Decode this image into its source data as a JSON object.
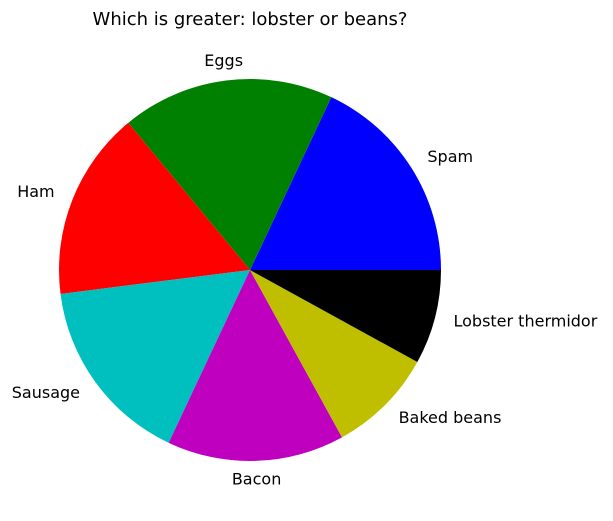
{
  "chart_data": {
    "type": "pie",
    "title": "Which is greater: lobster or beans?",
    "labels": [
      "Spam",
      "Eggs",
      "Ham",
      "Sausage",
      "Bacon",
      "Baked beans",
      "Lobster thermidor"
    ],
    "values": [
      18,
      18,
      16,
      16,
      15,
      9,
      8
    ],
    "colors": [
      "#0000ff",
      "#008000",
      "#ff0000",
      "#00bfbf",
      "#bf00bf",
      "#bfbf00",
      "#000000"
    ],
    "start_angle_deg": 0,
    "direction": "counterclockwise",
    "legend": "none"
  }
}
